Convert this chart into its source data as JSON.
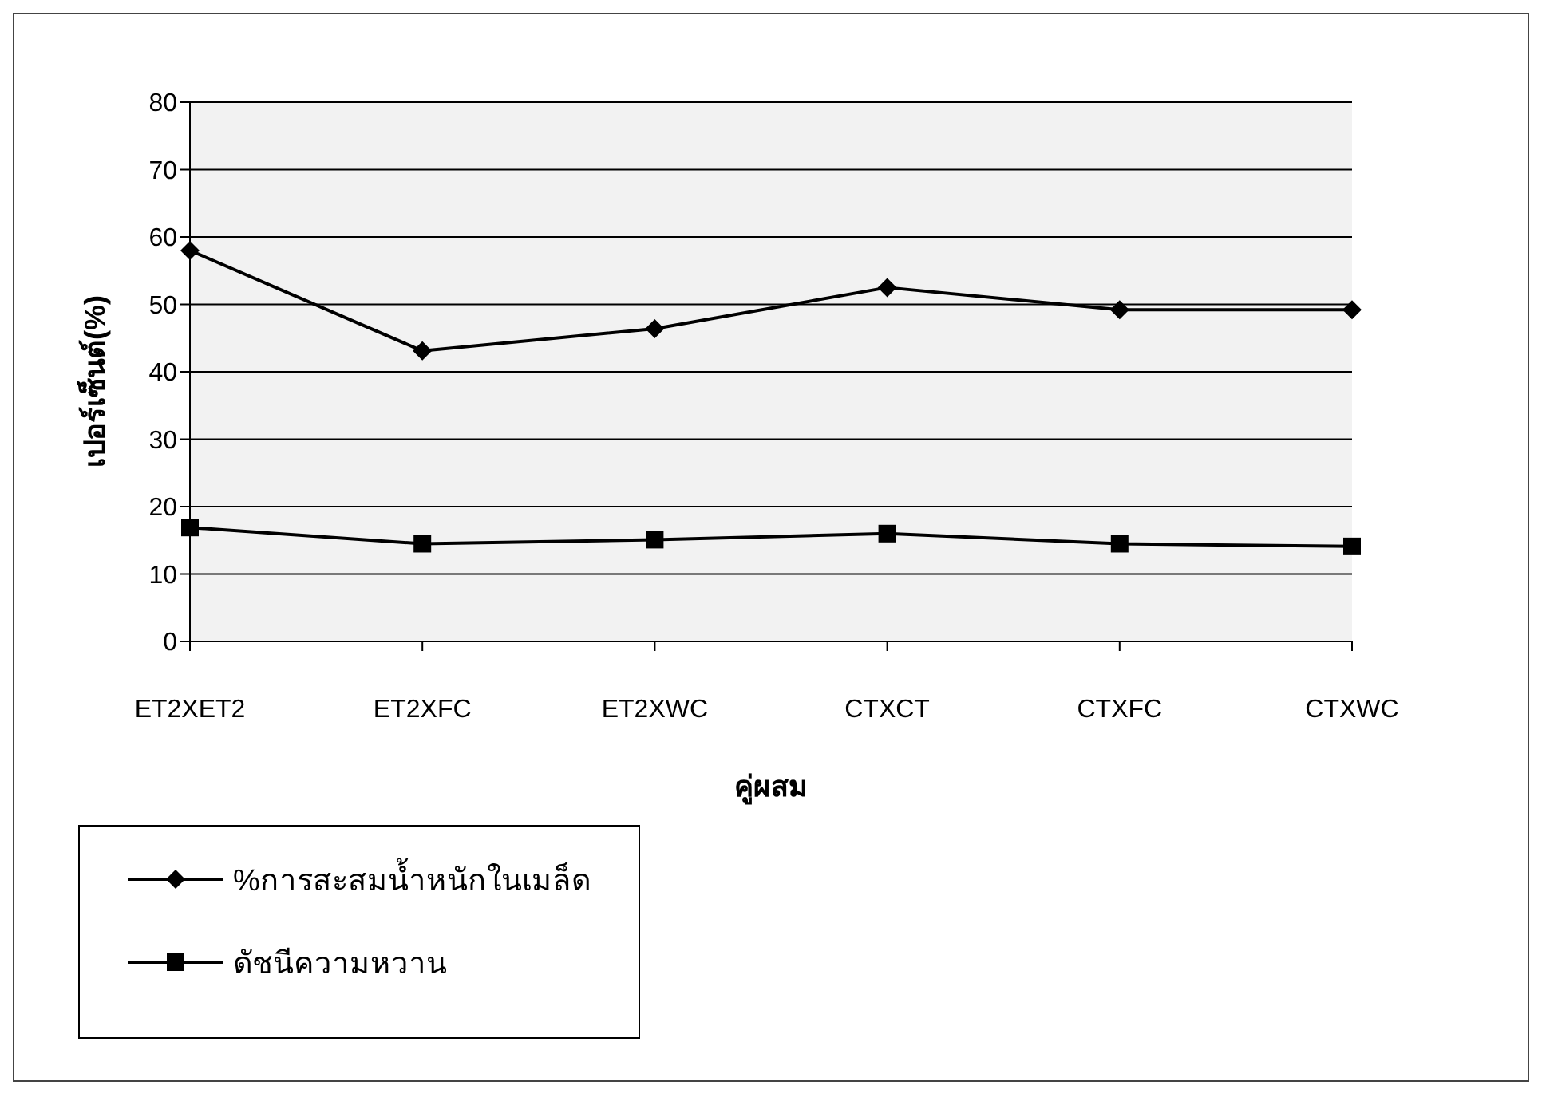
{
  "chart_data": {
    "type": "line",
    "xlabel": "คู่ผสม",
    "ylabel": "เปอร์เซ็นต์(%)",
    "categories": [
      "ET2XET2",
      "ET2XFC",
      "ET2XWC",
      "CTXCT",
      "CTXFC",
      "CTXWC"
    ],
    "series": [
      {
        "name": "%การสะสมน้ำหนักในเมล็ด",
        "color": "#000000",
        "marker": "diamond",
        "values": [
          58,
          43.1,
          46.4,
          52.5,
          49.2,
          49.2
        ]
      },
      {
        "name": "ดัชนีความหวาน",
        "color": "#000000",
        "marker": "square",
        "values": [
          16.9,
          14.5,
          15.1,
          16,
          14.5,
          14.1
        ]
      }
    ],
    "ylim": [
      0,
      80
    ],
    "yticks": [
      0,
      10,
      20,
      30,
      40,
      50,
      60,
      70,
      80
    ],
    "grid": "y",
    "legend": "bottom"
  }
}
